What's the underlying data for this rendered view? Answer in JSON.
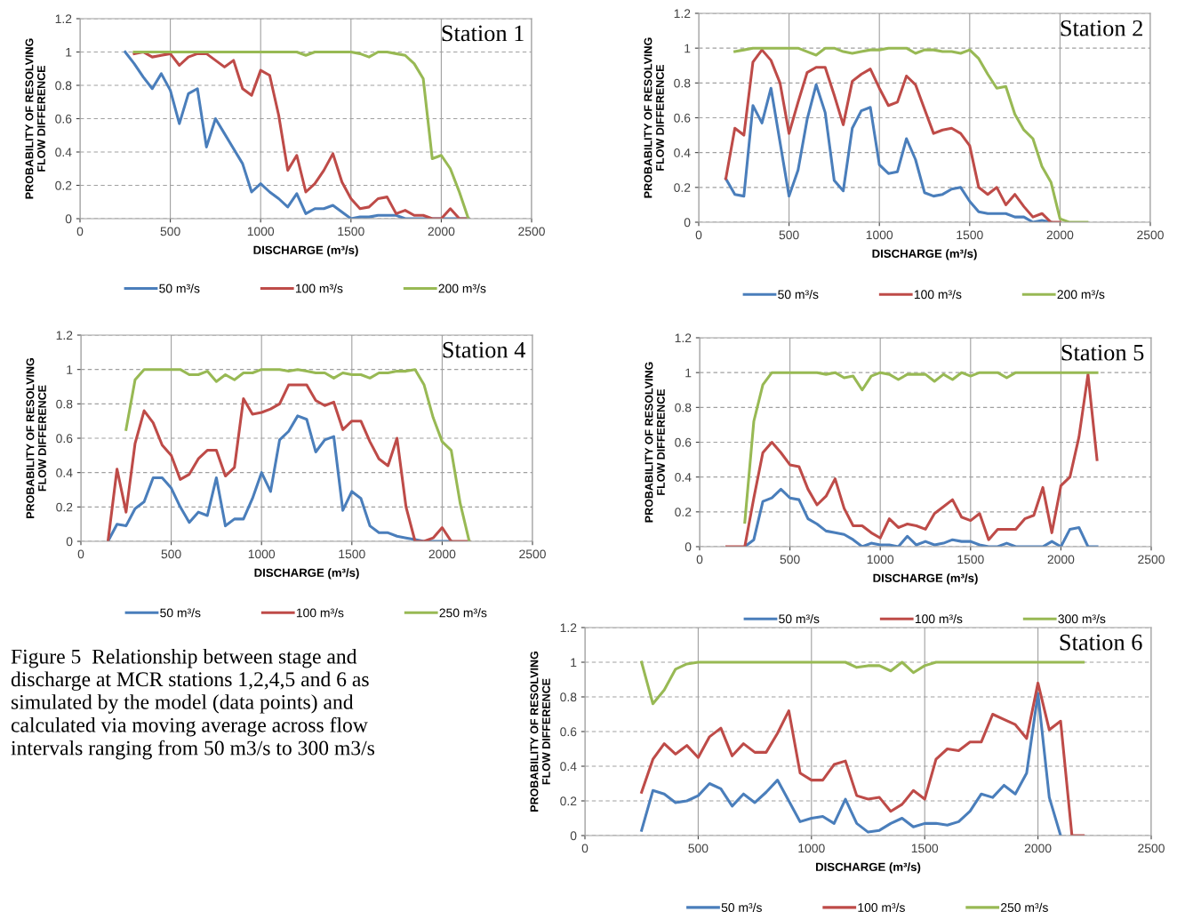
{
  "chart_data": [
    {
      "type": "line",
      "title": "Station 1",
      "xlabel": "DISCHARGE (m³/s)",
      "ylabel": "PROBABILITY OF RESOLVING FLOW DIFFERENCE",
      "xlim": [
        0,
        2500
      ],
      "xticks": [
        0,
        500,
        1000,
        1500,
        2000,
        2500
      ],
      "ylim": [
        0,
        1.2
      ],
      "yticks": [
        0,
        0.2,
        0.4,
        0.6,
        0.8,
        1,
        1.2
      ],
      "grid": true,
      "legend": "bottom",
      "x": [
        250,
        300,
        350,
        400,
        450,
        500,
        550,
        600,
        650,
        700,
        750,
        800,
        850,
        900,
        950,
        1000,
        1050,
        1100,
        1150,
        1200,
        1250,
        1300,
        1350,
        1400,
        1450,
        1500,
        1550,
        1600,
        1650,
        1700,
        1750,
        1800,
        1850,
        1900,
        1950,
        2000,
        2050,
        2100,
        2150
      ],
      "series": [
        {
          "name": "50 m³/s",
          "color": "#4a7ebb",
          "values": [
            1,
            0.93,
            0.85,
            0.78,
            0.87,
            0.77,
            0.57,
            0.75,
            0.78,
            0.43,
            0.6,
            0.51,
            0.42,
            0.33,
            0.16,
            0.21,
            0.16,
            0.12,
            0.07,
            0.15,
            0.03,
            0.06,
            0.06,
            0.08,
            0.04,
            0,
            0.01,
            0.01,
            0.02,
            0.02,
            0.02,
            0,
            0,
            0,
            0,
            0,
            0,
            0,
            0
          ]
        },
        {
          "name": "100 m³/s",
          "color": "#be4b48",
          "values": [
            null,
            0.99,
            1,
            0.97,
            0.98,
            0.99,
            0.92,
            0.97,
            0.99,
            0.99,
            0.95,
            0.91,
            0.95,
            0.78,
            0.74,
            0.89,
            0.86,
            0.62,
            0.29,
            0.38,
            0.16,
            0.21,
            0.29,
            0.39,
            0.22,
            0.12,
            0.06,
            0.07,
            0.12,
            0.13,
            0.03,
            0.05,
            0.02,
            0.02,
            0,
            0,
            0.06,
            0,
            0
          ]
        },
        {
          "name": "200 m³/s",
          "color": "#98b954",
          "values": [
            null,
            1,
            1,
            1,
            1,
            1,
            1,
            1,
            1,
            1,
            1,
            1,
            1,
            1,
            1,
            1,
            1,
            1,
            1,
            1,
            0.98,
            1,
            1,
            1,
            1,
            1,
            0.99,
            0.97,
            1,
            1,
            0.99,
            0.98,
            0.93,
            0.84,
            0.36,
            0.38,
            0.3,
            0.16,
            0
          ]
        }
      ]
    },
    {
      "type": "line",
      "title": "Station 2",
      "xlabel": "DISCHARGE (m³/s)",
      "ylabel": "PROBABILITY OF RESOLVING FLOW DIFFERENCE",
      "xlim": [
        0,
        2500
      ],
      "xticks": [
        0,
        500,
        1000,
        1500,
        2000,
        2500
      ],
      "ylim": [
        0,
        1.2
      ],
      "yticks": [
        0,
        0.2,
        0.4,
        0.6,
        0.8,
        1,
        1.2
      ],
      "grid": true,
      "legend": "bottom",
      "x": [
        150,
        200,
        250,
        300,
        350,
        400,
        450,
        500,
        550,
        600,
        650,
        700,
        750,
        800,
        850,
        900,
        950,
        1000,
        1050,
        1100,
        1150,
        1200,
        1250,
        1300,
        1350,
        1400,
        1450,
        1500,
        1550,
        1600,
        1650,
        1700,
        1750,
        1800,
        1850,
        1900,
        1950,
        2000,
        2050,
        2100,
        2150
      ],
      "series": [
        {
          "name": "50 m³/s",
          "color": "#4a7ebb",
          "values": [
            0.25,
            0.16,
            0.15,
            0.67,
            0.57,
            0.77,
            0.46,
            0.15,
            0.3,
            0.59,
            0.79,
            0.63,
            0.24,
            0.18,
            0.54,
            0.64,
            0.66,
            0.33,
            0.28,
            0.29,
            0.48,
            0.36,
            0.17,
            0.15,
            0.16,
            0.19,
            0.2,
            0.12,
            0.06,
            0.05,
            0.05,
            0.05,
            0.03,
            0.03,
            0,
            0.01,
            0,
            null,
            null,
            null,
            null
          ]
        },
        {
          "name": "100 m³/s",
          "color": "#be4b48",
          "values": [
            0.25,
            0.54,
            0.5,
            0.92,
            0.99,
            0.93,
            0.8,
            0.51,
            0.69,
            0.86,
            0.89,
            0.89,
            0.73,
            0.56,
            0.81,
            0.85,
            0.88,
            0.77,
            0.67,
            0.69,
            0.84,
            0.79,
            0.65,
            0.51,
            0.53,
            0.54,
            0.51,
            0.44,
            0.2,
            0.16,
            0.2,
            0.1,
            0.16,
            0.09,
            0.03,
            0.05,
            0,
            0,
            null,
            null,
            null
          ]
        },
        {
          "name": "200 m³/s",
          "color": "#98b954",
          "values": [
            null,
            0.98,
            0.99,
            1,
            1,
            1,
            1,
            1,
            1,
            0.98,
            0.96,
            1,
            1,
            0.98,
            0.97,
            0.98,
            0.99,
            0.99,
            1,
            1,
            1,
            0.97,
            0.99,
            0.99,
            0.98,
            0.98,
            0.97,
            0.99,
            0.94,
            0.85,
            0.77,
            0.78,
            0.62,
            0.53,
            0.48,
            0.32,
            0.23,
            0.02,
            0,
            0,
            0
          ]
        }
      ]
    },
    {
      "type": "line",
      "title": "Station 4",
      "xlabel": "DISCHARGE (m³/s)",
      "ylabel": "PROBABILITY OF RESOLVING FLOW DIFFERENCE",
      "xlim": [
        0,
        2500
      ],
      "xticks": [
        0,
        500,
        1000,
        1500,
        2000,
        2500
      ],
      "ylim": [
        0,
        1.2
      ],
      "yticks": [
        0,
        0.2,
        0.4,
        0.6,
        0.8,
        1,
        1.2
      ],
      "grid": true,
      "legend": "bottom",
      "x": [
        150,
        200,
        250,
        300,
        350,
        400,
        450,
        500,
        550,
        600,
        650,
        700,
        750,
        800,
        850,
        900,
        950,
        1000,
        1050,
        1100,
        1150,
        1200,
        1250,
        1300,
        1350,
        1400,
        1450,
        1500,
        1550,
        1600,
        1650,
        1700,
        1750,
        1800,
        1850,
        1900,
        1950,
        2000,
        2050,
        2100,
        2150
      ],
      "series": [
        {
          "name": "50 m³/s",
          "color": "#4a7ebb",
          "values": [
            0,
            0.1,
            0.09,
            0.19,
            0.23,
            0.37,
            0.37,
            0.31,
            0.2,
            0.11,
            0.17,
            0.15,
            0.37,
            0.09,
            0.13,
            0.13,
            0.25,
            0.4,
            0.29,
            0.59,
            0.64,
            0.73,
            0.71,
            0.52,
            0.59,
            0.61,
            0.18,
            0.29,
            0.25,
            0.09,
            0.05,
            0.05,
            0.03,
            0.02,
            0.01,
            0,
            0,
            0,
            0,
            null,
            null
          ]
        },
        {
          "name": "100 m³/s",
          "color": "#be4b48",
          "values": [
            0,
            0.42,
            0.17,
            0.57,
            0.76,
            0.69,
            0.56,
            0.5,
            0.36,
            0.39,
            0.48,
            0.53,
            0.53,
            0.38,
            0.43,
            0.83,
            0.74,
            0.75,
            0.77,
            0.8,
            0.91,
            0.91,
            0.91,
            0.82,
            0.79,
            0.81,
            0.65,
            0.7,
            0.7,
            0.58,
            0.48,
            0.44,
            0.6,
            0.2,
            0,
            0,
            0.02,
            0.08,
            0,
            0,
            0
          ]
        },
        {
          "name": "250 m³/s",
          "color": "#98b954",
          "values": [
            null,
            null,
            0.65,
            0.94,
            1,
            1,
            1,
            1,
            1,
            0.97,
            0.97,
            0.99,
            0.93,
            0.97,
            0.94,
            0.98,
            0.98,
            1,
            1,
            1,
            0.99,
            1,
            0.99,
            0.98,
            0.98,
            0.95,
            0.98,
            0.97,
            0.97,
            0.95,
            0.98,
            0.98,
            0.99,
            0.99,
            1,
            0.91,
            0.72,
            0.58,
            0.53,
            0.22,
            0
          ]
        }
      ]
    },
    {
      "type": "line",
      "title": "Station 5",
      "xlabel": "DISCHARGE (m³/s)",
      "ylabel": "PROBABILITY OF RESOLVING FLOW DIFFERENCE",
      "xlim": [
        0,
        2500
      ],
      "xticks": [
        0,
        500,
        1000,
        1500,
        2000,
        2500
      ],
      "ylim": [
        0,
        1.2
      ],
      "yticks": [
        0,
        0.2,
        0.4,
        0.6,
        0.8,
        1,
        1.2
      ],
      "grid": true,
      "legend": "bottom",
      "x": [
        150,
        200,
        250,
        300,
        350,
        400,
        450,
        500,
        550,
        600,
        650,
        700,
        750,
        800,
        850,
        900,
        950,
        1000,
        1050,
        1100,
        1150,
        1200,
        1250,
        1300,
        1350,
        1400,
        1450,
        1500,
        1550,
        1600,
        1650,
        1700,
        1750,
        1800,
        1850,
        1900,
        1950,
        2000,
        2050,
        2100,
        2150,
        2200
      ],
      "series": [
        {
          "name": "50 m³/s",
          "color": "#4a7ebb",
          "values": [
            null,
            null,
            0,
            0.04,
            0.26,
            0.28,
            0.33,
            0.28,
            0.27,
            0.16,
            0.13,
            0.09,
            0.08,
            0.07,
            0.04,
            0,
            0.02,
            0.01,
            0.01,
            0,
            0.06,
            0.01,
            0.03,
            0.01,
            0.02,
            0.04,
            0.03,
            0.03,
            0.01,
            0,
            0,
            0.02,
            0,
            0,
            0,
            0,
            0.03,
            0,
            0.1,
            0.11,
            0,
            0
          ]
        },
        {
          "name": "100 m³/s",
          "color": "#be4b48",
          "values": [
            0,
            0,
            0,
            0.28,
            0.54,
            0.6,
            0.54,
            0.47,
            0.46,
            0.33,
            0.24,
            0.29,
            0.39,
            0.22,
            0.12,
            0.12,
            0.08,
            0.05,
            0.16,
            0.11,
            0.13,
            0.12,
            0.1,
            0.19,
            0.23,
            0.27,
            0.17,
            0.15,
            0.19,
            0.04,
            0.1,
            0.1,
            0.1,
            0.16,
            0.18,
            0.34,
            0.08,
            0.35,
            0.4,
            0.63,
            0.99,
            0.5
          ]
        },
        {
          "name": "300 m³/s",
          "color": "#98b954",
          "values": [
            null,
            null,
            0.14,
            0.72,
            0.93,
            1,
            1,
            1,
            1,
            1,
            1,
            0.99,
            1,
            0.97,
            0.98,
            0.9,
            0.98,
            1,
            0.99,
            0.96,
            0.99,
            0.99,
            0.99,
            0.95,
            0.99,
            0.96,
            1,
            0.98,
            1,
            1,
            1,
            0.97,
            1,
            1,
            1,
            1,
            1,
            1,
            1,
            1,
            1,
            1
          ]
        }
      ]
    },
    {
      "type": "line",
      "title": "Station 6",
      "xlabel": "DISCHARGE (m³/s)",
      "ylabel": "PROBABILITY OF RESOLVING FLOW DIFFERENCE",
      "xlim": [
        0,
        2500
      ],
      "xticks": [
        0,
        500,
        1000,
        1500,
        2000,
        2500
      ],
      "ylim": [
        0,
        1.2
      ],
      "yticks": [
        0,
        0.2,
        0.4,
        0.6,
        0.8,
        1,
        1.2
      ],
      "grid": true,
      "legend": "bottom",
      "x": [
        250,
        300,
        350,
        400,
        450,
        500,
        550,
        600,
        650,
        700,
        750,
        800,
        850,
        900,
        950,
        1000,
        1050,
        1100,
        1150,
        1200,
        1250,
        1300,
        1350,
        1400,
        1450,
        1500,
        1550,
        1600,
        1650,
        1700,
        1750,
        1800,
        1850,
        1900,
        1950,
        2000,
        2050,
        2100,
        2150,
        2200
      ],
      "series": [
        {
          "name": "50 m³/s",
          "color": "#4a7ebb",
          "values": [
            0.03,
            0.26,
            0.24,
            0.19,
            0.2,
            0.23,
            0.3,
            0.27,
            0.17,
            0.24,
            0.19,
            0.25,
            0.32,
            0.2,
            0.08,
            0.1,
            0.11,
            0.07,
            0.21,
            0.07,
            0.02,
            0.03,
            0.07,
            0.1,
            0.05,
            0.07,
            0.07,
            0.06,
            0.08,
            0.14,
            0.24,
            0.22,
            0.29,
            0.24,
            0.36,
            0.82,
            0.22,
            0,
            null,
            null
          ]
        },
        {
          "name": "100 m³/s",
          "color": "#be4b48",
          "values": [
            0.25,
            0.44,
            0.53,
            0.47,
            0.52,
            0.45,
            0.57,
            0.62,
            0.46,
            0.53,
            0.48,
            0.48,
            0.59,
            0.72,
            0.36,
            0.32,
            0.32,
            0.41,
            0.43,
            0.23,
            0.21,
            0.22,
            0.14,
            0.18,
            0.26,
            0.21,
            0.44,
            0.5,
            0.49,
            0.54,
            0.54,
            0.7,
            0.67,
            0.64,
            0.56,
            0.88,
            0.61,
            0.66,
            0,
            0
          ]
        },
        {
          "name": "250 m³/s",
          "color": "#98b954",
          "values": [
            1,
            0.76,
            0.84,
            0.96,
            0.99,
            1,
            1,
            1,
            1,
            1,
            1,
            1,
            1,
            1,
            1,
            1,
            1,
            1,
            1,
            0.97,
            0.98,
            0.98,
            0.95,
            1,
            0.94,
            0.98,
            1,
            1,
            1,
            1,
            1,
            1,
            1,
            1,
            1,
            1,
            1,
            1,
            1,
            1
          ]
        }
      ]
    },
    {
      "type": "other",
      "annotations": [
        "Figure 5  Relationship between stage and discharge at MCR stations 1,2,4,5 and 6 as simulated by the model (data points) and calculated via moving average across flow intervals ranging from 50 m3/s to 300 m3/s"
      ]
    }
  ]
}
